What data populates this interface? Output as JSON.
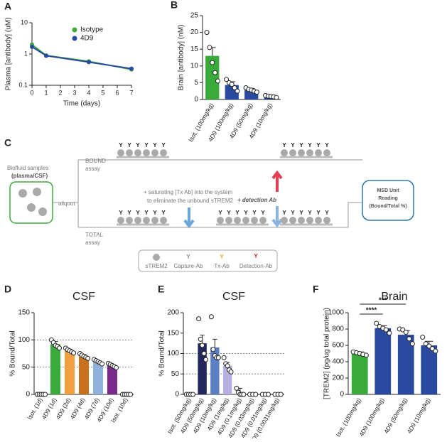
{
  "chart_data": [
    {
      "type": "line",
      "panel": "A",
      "ylabel": "Plasma [antibody] (uM)",
      "xlabel": "Time (days)",
      "x": [
        0,
        1,
        4,
        7
      ],
      "xlim": [
        0,
        7
      ],
      "xticks": [
        0,
        1,
        2,
        3,
        4,
        5,
        6,
        7
      ],
      "ylim": [
        0.1,
        10
      ],
      "yticks": [
        0.1,
        1,
        10
      ],
      "log_y": true,
      "series": [
        {
          "name": "Isotype",
          "color": "#3aab3a",
          "values": [
            2.0,
            0.9,
            0.58,
            0.32
          ]
        },
        {
          "name": "4D9",
          "color": "#2a4aa0",
          "values": [
            1.7,
            0.88,
            0.55,
            0.34
          ]
        }
      ]
    },
    {
      "type": "bar",
      "panel": "B",
      "ylabel": "Brain [antibody] (nM)",
      "categories": [
        "Isot. (100mg/kg)",
        "4D9 (100mg/kg)",
        "4D9 (50mg/kg)",
        "4D9 (10mg/kg)"
      ],
      "values": [
        13,
        4.3,
        2.8,
        0.9
      ],
      "errors": [
        2.5,
        1,
        0.5,
        0.3
      ],
      "points": [
        [
          20,
          15.5,
          11,
          8,
          5.5
        ],
        [
          6,
          5,
          4.5,
          3.5,
          2.5
        ],
        [
          3.5,
          3,
          2.8,
          2.5,
          2.2
        ],
        [
          1.2,
          1,
          0.9,
          0.8,
          0.6
        ]
      ],
      "colors": [
        "#3aab3a",
        "#2a4aa0",
        "#2a4aa0",
        "#2a4aa0"
      ],
      "ylim": [
        0,
        25
      ],
      "yticks": [
        0,
        5,
        10,
        15,
        20,
        25
      ]
    },
    {
      "type": "bar",
      "panel": "D",
      "title": "CSF",
      "ylabel": "% Bound/Total",
      "categories": [
        "Isot. (1d)",
        "4D9 (1d)",
        "4D9 (2d)",
        "4D9 (4d)",
        "4D9 (7d)",
        "4D9 (10d)",
        "Isot. (10d)"
      ],
      "values": [
        0,
        92,
        80,
        70,
        60,
        53,
        0
      ],
      "errors": [
        0,
        5,
        3,
        3,
        2,
        2,
        0
      ],
      "points": [
        [
          0,
          0,
          0,
          0,
          0
        ],
        [
          100,
          95,
          90,
          88,
          85
        ],
        [
          85,
          82,
          80,
          78,
          76
        ],
        [
          75,
          72,
          70,
          68,
          66
        ],
        [
          64,
          62,
          60,
          58,
          56
        ],
        [
          57,
          55,
          53,
          51,
          49
        ],
        [
          0,
          0,
          0,
          0,
          0
        ]
      ],
      "colors": [
        "#ffffff",
        "#3aab3a",
        "#f0a040",
        "#c8711f",
        "#8fb0dc",
        "#7a2a8a",
        "#ffffff"
      ],
      "ylim": [
        0,
        150
      ],
      "yticks": [
        0,
        50,
        100,
        150
      ],
      "refs": [
        50,
        100
      ]
    },
    {
      "type": "bar",
      "panel": "E",
      "title": "CSF",
      "ylabel": "% Bound/Total",
      "categories": [
        "Isot. (50mg/kg)",
        "4D9 (50mg/kg)",
        "4D9 (10mg/kg)",
        "4D9 (1mg/kg)",
        "4D9 (0.1mg/kg)",
        "4D9 (0.03mg/kg)",
        "4D9 (0.01mg/kg)",
        "4D9 (0.0031mg/kg)"
      ],
      "values": [
        0,
        125,
        115,
        70,
        5,
        1,
        1,
        0
      ],
      "errors": [
        0,
        20,
        20,
        8,
        10,
        1,
        1,
        0
      ],
      "points": [
        [
          0,
          0,
          0,
          0
        ],
        [
          185,
          135,
          120,
          100,
          85
        ],
        [
          190,
          110,
          95,
          90,
          90
        ],
        [
          90,
          75,
          70,
          60,
          55
        ],
        [
          15,
          5,
          0,
          0,
          0
        ],
        [
          0,
          0,
          0
        ],
        [
          0,
          0,
          0
        ],
        [
          0,
          0,
          0
        ]
      ],
      "colors": [
        "#ffffff",
        "#22285e",
        "#5b7fc4",
        "#b6b0e0",
        "#ffffff",
        "#ffffff",
        "#ffffff",
        "#ffffff"
      ],
      "ylim": [
        0,
        200
      ],
      "yticks": [
        0,
        50,
        100,
        150,
        200
      ],
      "refs": [
        50,
        100
      ]
    },
    {
      "type": "bar",
      "panel": "F",
      "title": "Brain",
      "ylabel": "[TREM2] (pg/ug total protein)",
      "categories": [
        "Isot. (100mg/kg)",
        "4D9 (100mg/kg)",
        "4D9 (50mg/kg)",
        "4D9 (10mg/kg)"
      ],
      "values": [
        500,
        810,
        730,
        600
      ],
      "errors": [
        20,
        30,
        50,
        50
      ],
      "points": [
        [
          520,
          510,
          500,
          490,
          480
        ],
        [
          870,
          830,
          810,
          790,
          750
        ],
        [
          800,
          790,
          760,
          680,
          620
        ],
        [
          700,
          620,
          590,
          560,
          530
        ]
      ],
      "colors": [
        "#3aab3a",
        "#2a4aa0",
        "#2a4aa0",
        "#2a4aa0"
      ],
      "ylim": [
        0,
        1000
      ],
      "yticks": [
        0,
        200,
        400,
        600,
        800,
        1000
      ],
      "significance": [
        "****",
        "***"
      ]
    }
  ],
  "diagram": {
    "panel": "C",
    "source": "Biofluid samples",
    "source_sub": "(plasma/CSF)",
    "aliquot": "aliquot",
    "bound": "BOUND",
    "bound_sub": "assay",
    "total": "TOTAL",
    "total_sub": "assay",
    "step1": "+ saturating [Tx Ab] into the system",
    "step1_sub": "to eliminate the unbound sTREM2",
    "step2": "+ detection Ab",
    "reader": [
      "MSD Unit",
      "Reading",
      "(Bound/Total %)"
    ],
    "legend": [
      "sTREM2",
      "Capture-Ab",
      "Tx-Ab",
      "Detection-Ab"
    ]
  }
}
